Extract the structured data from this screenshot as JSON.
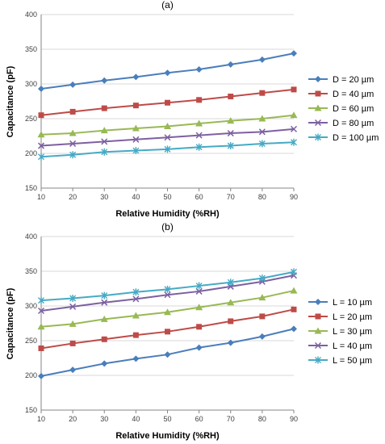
{
  "chart_data": [
    {
      "type": "line",
      "title": "(a)",
      "xlabel": "Relative Humidity (%RH)",
      "ylabel": "Capacitance (pF)",
      "x": [
        10,
        20,
        30,
        40,
        50,
        60,
        70,
        80,
        90
      ],
      "xlim": [
        10,
        90
      ],
      "ylim": [
        150,
        400
      ],
      "yticks": [
        150,
        200,
        250,
        300,
        350,
        400
      ],
      "grid": "horizontal",
      "legend_position": "right",
      "series": [
        {
          "name": "D = 20 µm",
          "color": "#4A7EBB",
          "marker": "diamond",
          "values": [
            293,
            299,
            305,
            310,
            316,
            321,
            328,
            335,
            344
          ]
        },
        {
          "name": "D = 40 µm",
          "color": "#BE4B48",
          "marker": "square",
          "values": [
            255,
            260,
            265,
            269,
            273,
            277,
            282,
            287,
            292
          ]
        },
        {
          "name": "D = 60 µm",
          "color": "#98B954",
          "marker": "triangle",
          "values": [
            227,
            229,
            233,
            236,
            239,
            243,
            247,
            250,
            255
          ]
        },
        {
          "name": "D = 80 µm",
          "color": "#7D60A0",
          "marker": "x",
          "values": [
            211,
            214,
            217,
            220,
            223,
            226,
            229,
            231,
            235
          ]
        },
        {
          "name": "D = 100 µm",
          "color": "#46AAC5",
          "marker": "star",
          "values": [
            195,
            198,
            202,
            204,
            206,
            209,
            211,
            214,
            216
          ]
        }
      ]
    },
    {
      "type": "line",
      "title": "(b)",
      "xlabel": "Relative Humidity (%RH)",
      "ylabel": "Capacitance (pF)",
      "x": [
        10,
        20,
        30,
        40,
        50,
        60,
        70,
        80,
        90
      ],
      "xlim": [
        10,
        90
      ],
      "ylim": [
        150,
        400
      ],
      "yticks": [
        150,
        200,
        250,
        300,
        350,
        400
      ],
      "grid": "horizontal",
      "legend_position": "right",
      "series": [
        {
          "name": "L = 10 µm",
          "color": "#4A7EBB",
          "marker": "diamond",
          "values": [
            199,
            208,
            217,
            224,
            230,
            240,
            247,
            256,
            267
          ]
        },
        {
          "name": "L = 20 µm",
          "color": "#BE4B48",
          "marker": "square",
          "values": [
            239,
            246,
            252,
            258,
            263,
            270,
            278,
            285,
            295
          ]
        },
        {
          "name": "L = 30 µm",
          "color": "#98B954",
          "marker": "triangle",
          "values": [
            270,
            274,
            281,
            286,
            291,
            298,
            305,
            312,
            322
          ]
        },
        {
          "name": "L = 40 µm",
          "color": "#7D60A0",
          "marker": "x",
          "values": [
            293,
            299,
            305,
            310,
            316,
            321,
            328,
            335,
            344
          ]
        },
        {
          "name": "L = 50 µm",
          "color": "#46AAC5",
          "marker": "star",
          "values": [
            308,
            311,
            315,
            320,
            324,
            329,
            334,
            340,
            349
          ]
        }
      ]
    }
  ]
}
